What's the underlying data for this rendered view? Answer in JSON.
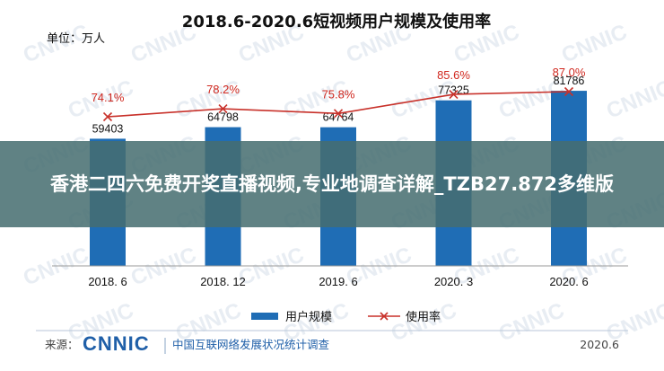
{
  "chart_data": {
    "type": "bar",
    "title": "2018.6-2020.6短视频用户规模及使用率",
    "unit_label": "单位：万人",
    "categories": [
      "2018. 6",
      "2018. 12",
      "2019. 6",
      "2020. 3",
      "2020. 6"
    ],
    "series": [
      {
        "name": "用户规模",
        "kind": "bar",
        "color": "#1f6db5",
        "values": [
          59403,
          64798,
          64764,
          77325,
          81786
        ],
        "labels": [
          "59403",
          "64798",
          "64764",
          "77325",
          "81786"
        ]
      },
      {
        "name": "使用率",
        "kind": "line",
        "color": "#c8312a",
        "marker": "x",
        "values": [
          74.1,
          78.2,
          75.8,
          85.6,
          87.0
        ],
        "labels": [
          "74.1%",
          "78.2%",
          "75.8%",
          "85.6%",
          "87.0%"
        ]
      }
    ],
    "ylim": [
      0,
      120000
    ],
    "rate_ylim": [
      40,
      100
    ],
    "legend_position": "bottom-center",
    "source_label": "来源：",
    "source_logo": "CNNIC",
    "source_org": "中国互联网络发展状况统计调查",
    "date": "2020.6",
    "watermark": "CNNIC"
  },
  "overlay": {
    "text": "香港二四六免费开奖直播视频,专业地调查详解_TZB27.872多维版"
  }
}
